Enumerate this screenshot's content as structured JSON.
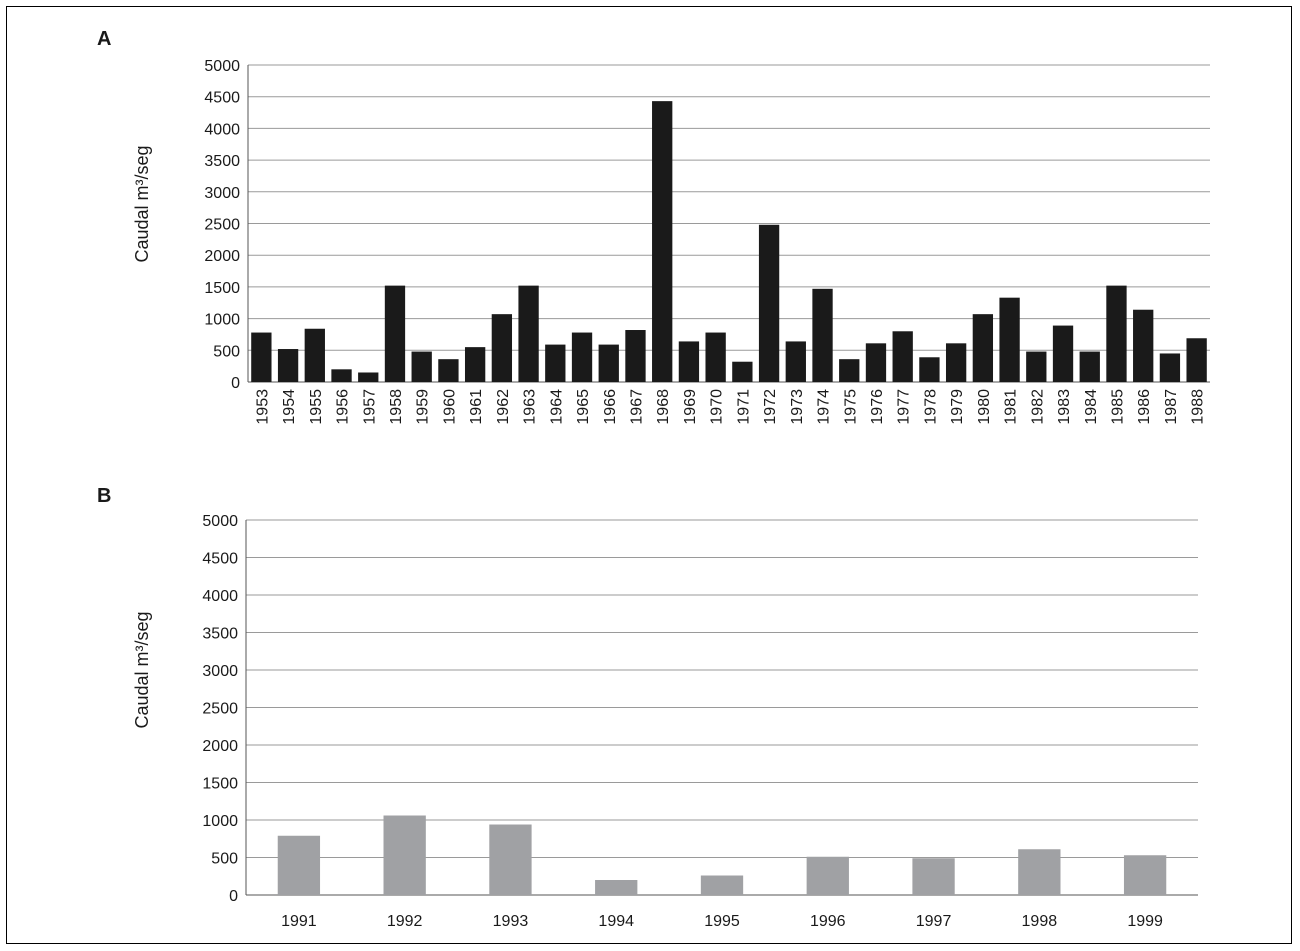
{
  "chart_data": [
    {
      "panel": "A",
      "type": "bar",
      "ylabel": "Caudal m³/seg",
      "ylim": [
        0,
        5000
      ],
      "yticks": [
        "0",
        "500",
        "1000",
        "1500",
        "2000",
        "2500",
        "3000",
        "3500",
        "4000",
        "4500",
        "5000"
      ],
      "bar_color": "#1a1a1a",
      "grid": true,
      "categories": [
        "1953",
        "1954",
        "1955",
        "1956",
        "1957",
        "1958",
        "1959",
        "1960",
        "1961",
        "1962",
        "1963",
        "1964",
        "1965",
        "1966",
        "1967",
        "1968",
        "1969",
        "1970",
        "1971",
        "1972",
        "1973",
        "1974",
        "1975",
        "1976",
        "1977",
        "1978",
        "1979",
        "1980",
        "1981",
        "1982",
        "1983",
        "1984",
        "1985",
        "1986",
        "1987",
        "1988"
      ],
      "values": [
        780,
        520,
        840,
        200,
        150,
        1520,
        480,
        360,
        550,
        1070,
        1520,
        590,
        780,
        590,
        820,
        4430,
        640,
        780,
        320,
        2480,
        640,
        1470,
        360,
        610,
        800,
        390,
        610,
        1070,
        1330,
        480,
        890,
        480,
        1520,
        1140,
        450,
        690
      ]
    },
    {
      "panel": "B",
      "type": "bar",
      "ylabel": "Caudal m³/seg",
      "ylim": [
        0,
        5000
      ],
      "yticks": [
        "0",
        "500",
        "1000",
        "1500",
        "2000",
        "2500",
        "3000",
        "3500",
        "4000",
        "4500",
        "5000"
      ],
      "bar_color": "#a0a1a4",
      "grid": true,
      "categories": [
        "1991",
        "1992",
        "1993",
        "1994",
        "1995",
        "1996",
        "1997",
        "1998",
        "1999"
      ],
      "values": [
        790,
        1060,
        940,
        200,
        260,
        510,
        490,
        610,
        530
      ]
    }
  ]
}
